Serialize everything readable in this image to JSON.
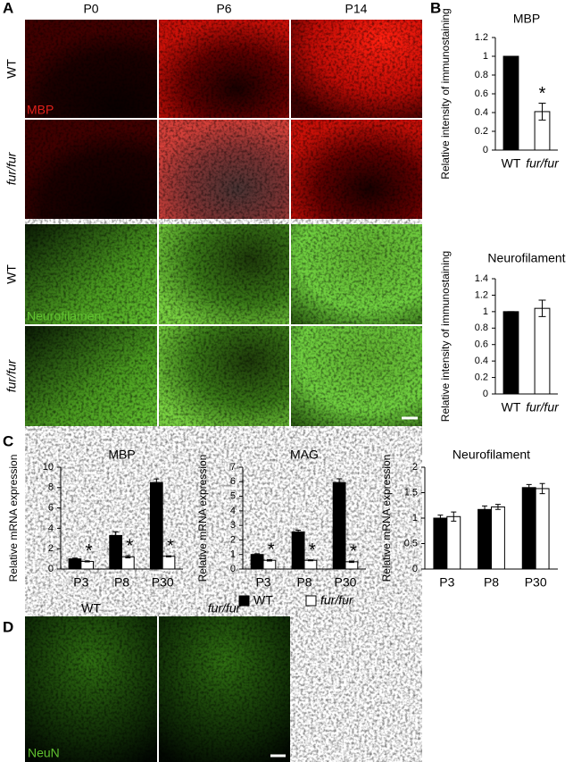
{
  "figure": {
    "panel_labels": [
      "A",
      "B",
      "C",
      "D"
    ],
    "a": {
      "columns": [
        "P0",
        "P6",
        "P14"
      ],
      "rows": [
        "WT",
        "fur/fur",
        "WT",
        "fur/fur"
      ],
      "stains": [
        "MBP",
        "Neurofilament"
      ]
    },
    "d": {
      "columns": [
        "WT",
        "fur/fur"
      ],
      "stain": "NeuN"
    },
    "legend": [
      {
        "name": "WT",
        "color": "#000000"
      },
      {
        "name": "fur/fur",
        "color": "#ffffff"
      }
    ]
  },
  "chart_data": [
    {
      "type": "bar",
      "title": "MBP",
      "y_label": "Relative intensity of immunostaining",
      "categories": [
        "WT",
        "fur/fur"
      ],
      "values": [
        1,
        0.41
      ],
      "errors": [
        0,
        0.09
      ],
      "colors": [
        "#000000",
        "#ffffff"
      ],
      "ylim": [
        0,
        1.2
      ],
      "yticks": [
        0,
        0.2,
        0.4,
        0.6,
        0.8,
        1,
        1.2
      ],
      "annotations": [
        {
          "text": "*",
          "index": 1
        }
      ]
    },
    {
      "type": "bar",
      "title": "Neurofilament",
      "y_label": "Relative intensity of immunostaining",
      "categories": [
        "WT",
        "fur/fur"
      ],
      "values": [
        1,
        1.04
      ],
      "errors": [
        0,
        0.1
      ],
      "colors": [
        "#000000",
        "#ffffff"
      ],
      "ylim": [
        0,
        1.4
      ],
      "yticks": [
        0,
        0.2,
        0.4,
        0.6,
        0.8,
        1,
        1.2,
        1.4
      ]
    },
    {
      "type": "grouped-bar",
      "title": "MBP",
      "y_label": "Relative mRNA expression",
      "categories": [
        "P3",
        "P8",
        "P30"
      ],
      "series": [
        {
          "values": [
            1.0,
            3.3,
            8.5
          ],
          "errors": [
            0.07,
            0.35,
            0.35
          ]
        },
        {
          "values": [
            0.75,
            1.2,
            1.25
          ],
          "errors": [
            0.05,
            0.1,
            0.05
          ]
        }
      ],
      "ylim": [
        0,
        10
      ],
      "yticks": [
        0,
        2,
        4,
        6,
        8,
        10
      ],
      "annotations": [
        {
          "text": "*",
          "index": 0,
          "series": 1
        },
        {
          "text": "*",
          "index": 1,
          "series": 1
        },
        {
          "text": "*",
          "index": 2,
          "series": 1
        }
      ]
    },
    {
      "type": "grouped-bar",
      "title": "MAG",
      "y_label": "Relative mRNA expression",
      "categories": [
        "P3",
        "P8",
        "P30"
      ],
      "series": [
        {
          "values": [
            1.0,
            2.55,
            5.95
          ],
          "errors": [
            0.05,
            0.12,
            0.25
          ]
        },
        {
          "values": [
            0.6,
            0.6,
            0.5
          ],
          "errors": [
            0.05,
            0.03,
            0.05
          ]
        }
      ],
      "ylim": [
        0,
        7
      ],
      "yticks": [
        0,
        1,
        2,
        3,
        4,
        5,
        6,
        7
      ],
      "annotations": [
        {
          "text": "*",
          "index": 0,
          "series": 1
        },
        {
          "text": "*",
          "index": 1,
          "series": 1
        },
        {
          "text": "*",
          "index": 2,
          "series": 1
        }
      ]
    },
    {
      "type": "grouped-bar",
      "title": "Neurofilament",
      "y_label": "Relative mRNA expression",
      "categories": [
        "P3",
        "P8",
        "P30"
      ],
      "series": [
        {
          "values": [
            1.0,
            1.17,
            1.6
          ],
          "errors": [
            0.06,
            0.07,
            0.06
          ]
        },
        {
          "values": [
            1.03,
            1.22,
            1.58
          ],
          "errors": [
            0.09,
            0.05,
            0.1
          ]
        }
      ],
      "ylim": [
        0,
        2
      ],
      "yticks": [
        0,
        0.5,
        1,
        1.5,
        2
      ]
    }
  ]
}
